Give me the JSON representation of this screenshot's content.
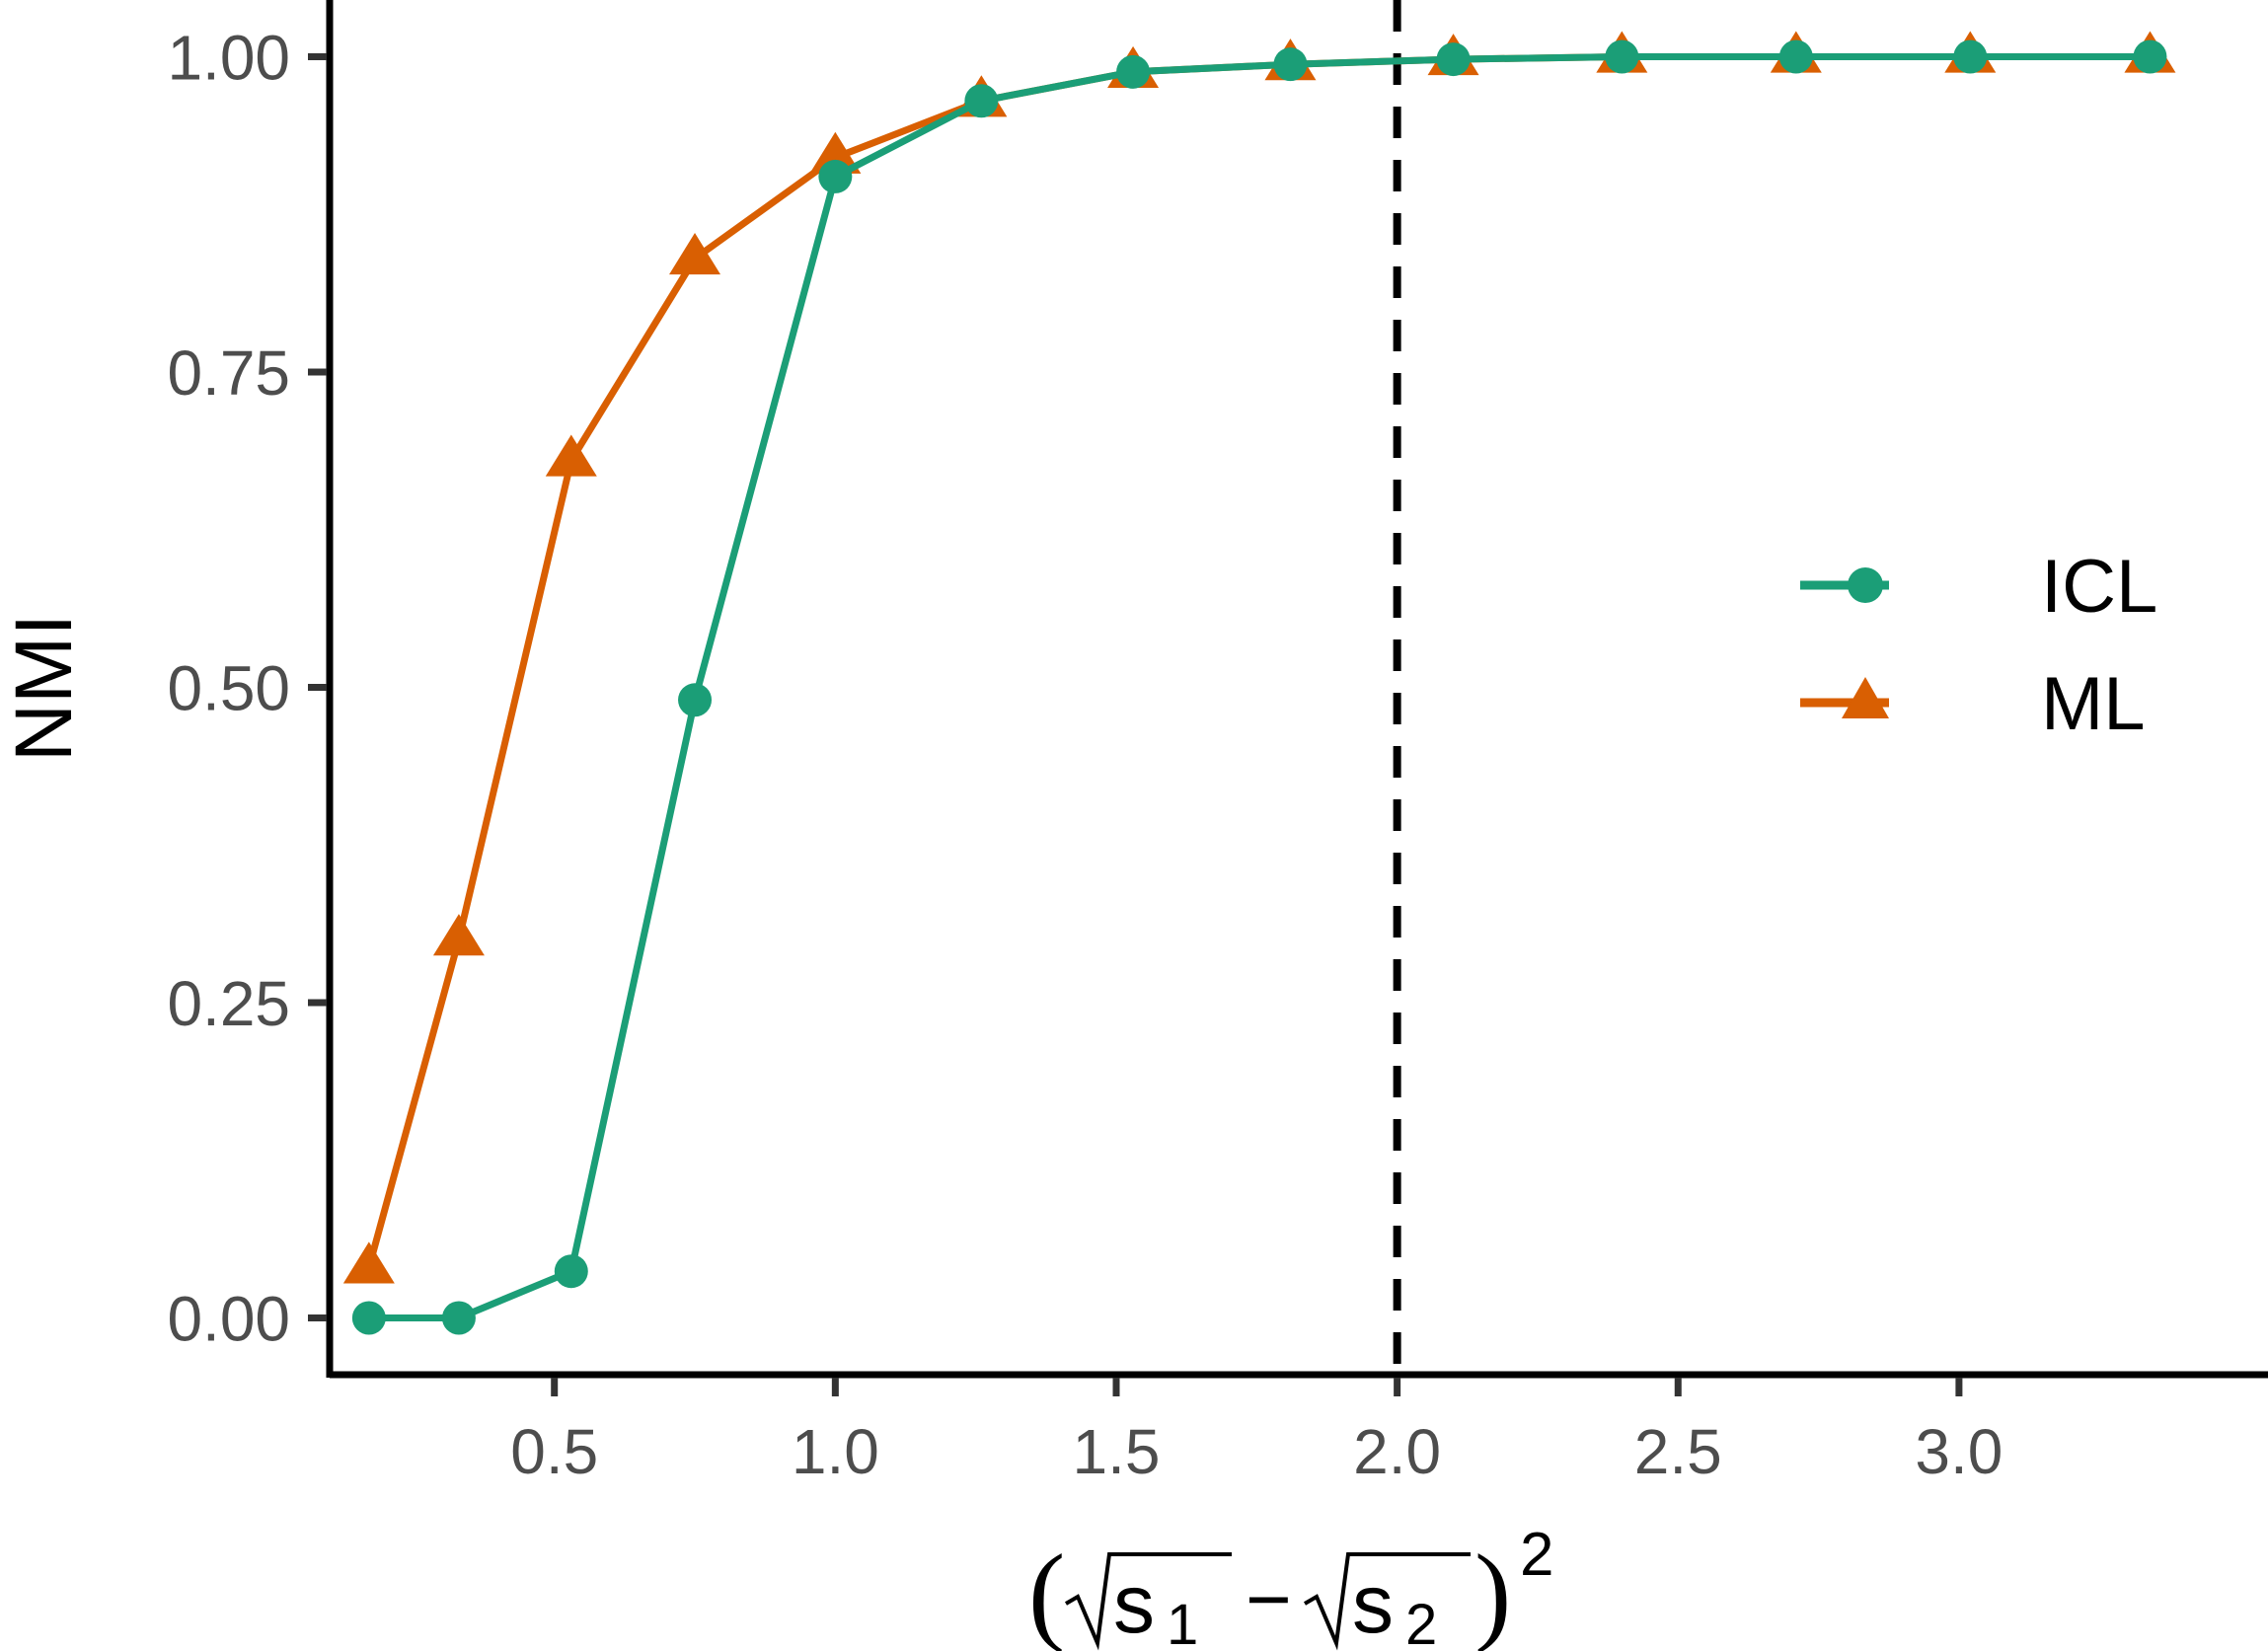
{
  "chart_data": {
    "type": "line",
    "xlabel": {
      "open_paren": "(",
      "s1_base": "s",
      "s1_sub": "1",
      "minus": "−",
      "s2_base": "s",
      "s2_sub": "2",
      "close_paren": ")",
      "exponent": "2"
    },
    "ylabel": "NMI",
    "xlim": [
      0.1,
      3.55
    ],
    "ylim": [
      -0.045,
      1.045
    ],
    "xticks": [
      0.5,
      1.0,
      1.5,
      2.0,
      2.5,
      3.0
    ],
    "xtick_labels": [
      "0.5",
      "1.0",
      "1.5",
      "2.0",
      "2.5",
      "3.0"
    ],
    "yticks": [
      0.0,
      0.25,
      0.5,
      0.75,
      1.0
    ],
    "ytick_labels": [
      "0.00",
      "0.25",
      "0.50",
      "0.75",
      "1.00"
    ],
    "reference_line": {
      "x": 2.0,
      "style": "dashed",
      "color": "#000000"
    },
    "grid": false,
    "legend": {
      "position": "right",
      "entries": [
        "ICL",
        "ML"
      ]
    },
    "series": [
      {
        "name": "ICL",
        "marker": "circle",
        "color": "#1b9e77",
        "x": [
          0.17,
          0.33,
          0.53,
          0.75,
          1.0,
          1.26,
          1.53,
          1.81,
          2.1,
          2.4,
          2.71,
          3.02,
          3.34
        ],
        "y": [
          0.0,
          0.0,
          0.037,
          0.49,
          0.905,
          0.965,
          0.988,
          0.994,
          0.998,
          1.0,
          1.0,
          1.0,
          1.0
        ]
      },
      {
        "name": "ML",
        "marker": "triangle",
        "color": "#d95f02",
        "x": [
          0.17,
          0.33,
          0.53,
          0.75,
          1.0,
          1.26,
          1.53,
          1.81,
          2.1,
          2.4,
          2.71,
          3.02,
          3.34
        ],
        "y": [
          0.04,
          0.3,
          0.68,
          0.84,
          0.92,
          0.965,
          0.988,
          0.994,
          0.998,
          1.0,
          1.0,
          1.0,
          1.0
        ]
      }
    ]
  }
}
